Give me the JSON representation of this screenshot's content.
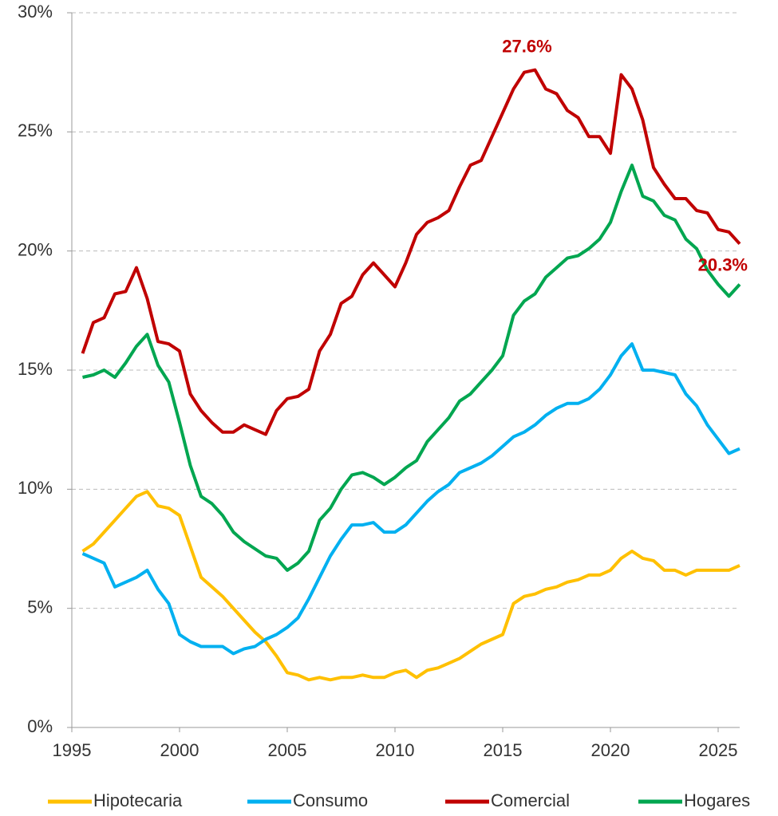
{
  "chart_data": {
    "type": "line",
    "x": [
      1995.5,
      1996,
      1996.5,
      1997,
      1997.5,
      1998,
      1998.5,
      1999,
      1999.5,
      2000,
      2000.5,
      2001,
      2001.5,
      2002,
      2002.5,
      2003,
      2003.5,
      2004,
      2004.5,
      2005,
      2005.5,
      2006,
      2006.5,
      2007,
      2007.5,
      2008,
      2008.5,
      2009,
      2009.5,
      2010,
      2010.5,
      2011,
      2011.5,
      2012,
      2012.5,
      2013,
      2013.5,
      2014,
      2014.5,
      2015,
      2015.5,
      2016,
      2016.5,
      2017,
      2017.5,
      2018,
      2018.5,
      2019,
      2019.5,
      2020,
      2020.5,
      2021,
      2021.5,
      2022,
      2022.5,
      2023,
      2023.5,
      2024,
      2024.5,
      2025,
      2025.5,
      2026
    ],
    "series": [
      {
        "name": "Hipotecaria",
        "color": "#FFC000",
        "values": [
          7.4,
          7.7,
          8.2,
          8.7,
          9.2,
          9.7,
          9.9,
          9.3,
          9.2,
          8.9,
          7.6,
          6.3,
          5.9,
          5.5,
          5.0,
          4.5,
          4.0,
          3.6,
          3.0,
          2.3,
          2.2,
          2.0,
          2.1,
          2.0,
          2.1,
          2.1,
          2.2,
          2.1,
          2.1,
          2.3,
          2.4,
          2.1,
          2.4,
          2.5,
          2.7,
          2.9,
          3.2,
          3.5,
          3.7,
          3.9,
          5.2,
          5.5,
          5.6,
          5.8,
          5.9,
          6.1,
          6.2,
          6.4,
          6.4,
          6.6,
          7.1,
          7.4,
          7.1,
          7.0,
          6.6,
          6.6,
          6.4,
          6.6,
          6.6,
          6.6,
          6.6,
          6.8
        ]
      },
      {
        "name": "Consumo",
        "color": "#00B0F0",
        "values": [
          7.3,
          7.1,
          6.9,
          5.9,
          6.1,
          6.3,
          6.6,
          5.8,
          5.2,
          3.9,
          3.6,
          3.4,
          3.4,
          3.4,
          3.1,
          3.3,
          3.4,
          3.7,
          3.9,
          4.2,
          4.6,
          5.4,
          6.3,
          7.2,
          7.9,
          8.5,
          8.5,
          8.6,
          8.2,
          8.2,
          8.5,
          9.0,
          9.5,
          9.9,
          10.2,
          10.7,
          10.9,
          11.1,
          11.4,
          11.8,
          12.2,
          12.4,
          12.7,
          13.1,
          13.4,
          13.6,
          13.6,
          13.8,
          14.2,
          14.8,
          15.6,
          16.1,
          15.0,
          15.0,
          14.9,
          14.8,
          14.0,
          13.5,
          12.7,
          12.1,
          11.5,
          11.7
        ]
      },
      {
        "name": "Comercial",
        "color": "#C00000",
        "values": [
          15.7,
          17.0,
          17.2,
          18.2,
          18.3,
          19.3,
          18.0,
          16.2,
          16.1,
          15.8,
          14.0,
          13.3,
          12.8,
          12.4,
          12.4,
          12.7,
          12.5,
          12.3,
          13.3,
          13.8,
          13.9,
          14.2,
          15.8,
          16.5,
          17.8,
          18.1,
          19.0,
          19.5,
          19.0,
          18.5,
          19.5,
          20.7,
          21.2,
          21.4,
          21.7,
          22.7,
          23.6,
          23.8,
          24.8,
          25.8,
          26.8,
          27.5,
          27.6,
          26.8,
          26.6,
          25.9,
          25.6,
          24.8,
          24.8,
          24.1,
          27.4,
          26.8,
          25.5,
          23.5,
          22.8,
          22.2,
          22.2,
          21.7,
          21.6,
          20.9,
          20.8,
          20.3
        ]
      },
      {
        "name": "Hogares",
        "color": "#00A650",
        "values": [
          14.7,
          14.8,
          15.0,
          14.7,
          15.3,
          16.0,
          16.5,
          15.2,
          14.5,
          12.8,
          11.0,
          9.7,
          9.4,
          8.9,
          8.2,
          7.8,
          7.5,
          7.2,
          7.1,
          6.6,
          6.9,
          7.4,
          8.7,
          9.2,
          10.0,
          10.6,
          10.7,
          10.5,
          10.2,
          10.5,
          10.9,
          11.2,
          12.0,
          12.5,
          13.0,
          13.7,
          14.0,
          14.5,
          15.0,
          15.6,
          17.3,
          17.9,
          18.2,
          18.9,
          19.3,
          19.7,
          19.8,
          20.1,
          20.5,
          21.2,
          22.5,
          23.6,
          22.3,
          22.1,
          21.5,
          21.3,
          20.5,
          20.1,
          19.2,
          18.6,
          18.1,
          18.6
        ]
      }
    ],
    "annotations": [
      {
        "text": "27.6%",
        "x": 2016.5,
        "y": 27.6,
        "color": "#C00000"
      },
      {
        "text": "20.3%",
        "x": 2026,
        "y": 20.3,
        "color": "#C00000"
      }
    ],
    "xlim": [
      1995,
      2026
    ],
    "xticks": [
      1995,
      2000,
      2005,
      2010,
      2015,
      2020,
      2025
    ],
    "ylim": [
      0,
      30
    ],
    "yticks": [
      {
        "value": 0,
        "label": "0%"
      },
      {
        "value": 5,
        "label": "5%"
      },
      {
        "value": 10,
        "label": "10%"
      },
      {
        "value": 15,
        "label": "15%"
      },
      {
        "value": 20,
        "label": "20%"
      },
      {
        "value": 25,
        "label": "25%"
      },
      {
        "value": 30,
        "label": "30%"
      }
    ],
    "grid": true,
    "legend": "bottom"
  }
}
